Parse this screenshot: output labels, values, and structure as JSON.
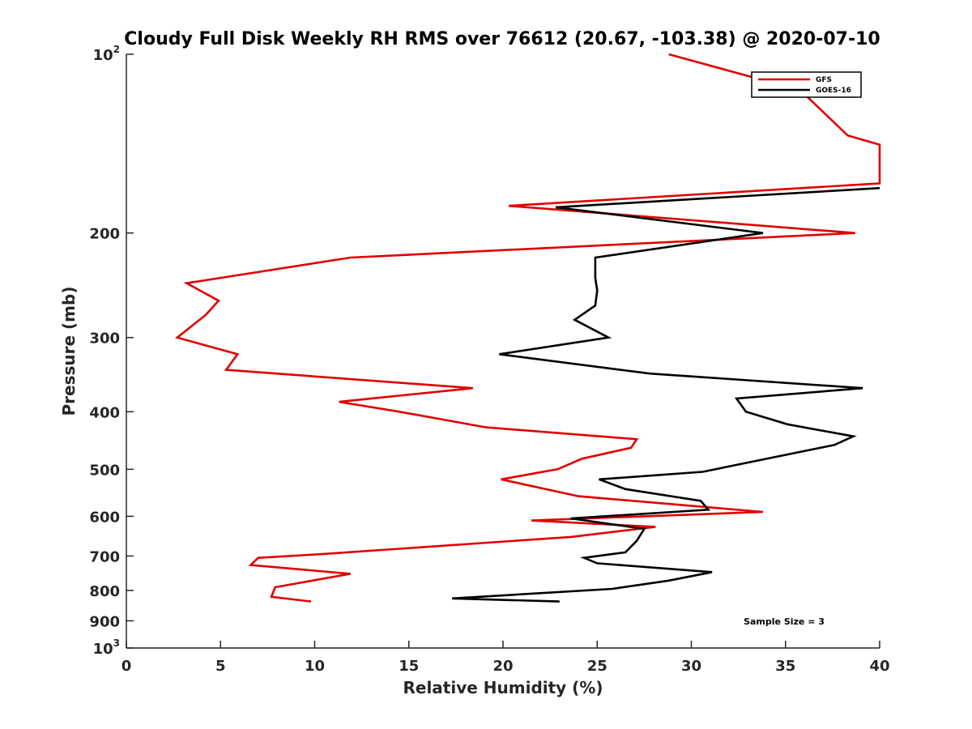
{
  "chart_data": {
    "type": "line",
    "title": "Cloudy Full Disk Weekly RH RMS over 76612 (20.67, -103.38) @ 2020-07-10",
    "xlabel": "Relative Humidity (%)",
    "ylabel": "Pressure (mb)",
    "xlim": [
      0,
      40
    ],
    "ylim": [
      100,
      1000
    ],
    "yscale": "log",
    "y_reversed": true,
    "grid": false,
    "legend_position": "top-right",
    "x_ticks": [
      0,
      5,
      10,
      15,
      20,
      25,
      30,
      35,
      40
    ],
    "x_tick_labels": [
      "0",
      "5",
      "10",
      "15",
      "20",
      "25",
      "30",
      "35",
      "40"
    ],
    "y_ticks": [
      100,
      200,
      300,
      400,
      500,
      600,
      700,
      800,
      900,
      1000
    ],
    "y_tick_labels": [
      {
        "base": "10",
        "exp": "2"
      },
      {
        "base": "200",
        "exp": ""
      },
      {
        "base": "300",
        "exp": ""
      },
      {
        "base": "400",
        "exp": ""
      },
      {
        "base": "500",
        "exp": ""
      },
      {
        "base": "600",
        "exp": ""
      },
      {
        "base": "700",
        "exp": ""
      },
      {
        "base": "800",
        "exp": ""
      },
      {
        "base": "900",
        "exp": ""
      },
      {
        "base": "10",
        "exp": "3"
      }
    ],
    "annotation": "Sample Size = 3",
    "series": [
      {
        "name": "GFS",
        "color": "#e00000",
        "points": [
          {
            "x": 28.8,
            "p": 100
          },
          {
            "x": 35.8,
            "p": 115
          },
          {
            "x": 38.3,
            "p": 137
          },
          {
            "x": 40.0,
            "p": 142
          },
          {
            "x": 40.0,
            "p": 165
          },
          {
            "x": 20.3,
            "p": 180
          },
          {
            "x": 38.7,
            "p": 200
          },
          {
            "x": 11.9,
            "p": 220
          },
          {
            "x": 3.2,
            "p": 243
          },
          {
            "x": 4.9,
            "p": 260
          },
          {
            "x": 4.2,
            "p": 275
          },
          {
            "x": 2.7,
            "p": 300
          },
          {
            "x": 5.9,
            "p": 320
          },
          {
            "x": 5.3,
            "p": 340
          },
          {
            "x": 18.4,
            "p": 365
          },
          {
            "x": 11.3,
            "p": 385
          },
          {
            "x": 14.5,
            "p": 400
          },
          {
            "x": 19.1,
            "p": 425
          },
          {
            "x": 27.1,
            "p": 445
          },
          {
            "x": 26.8,
            "p": 460
          },
          {
            "x": 24.2,
            "p": 480
          },
          {
            "x": 22.9,
            "p": 500
          },
          {
            "x": 19.9,
            "p": 520
          },
          {
            "x": 24.0,
            "p": 555
          },
          {
            "x": 33.8,
            "p": 590
          },
          {
            "x": 21.5,
            "p": 610
          },
          {
            "x": 28.1,
            "p": 625
          },
          {
            "x": 23.6,
            "p": 650
          },
          {
            "x": 10.3,
            "p": 695
          },
          {
            "x": 7.0,
            "p": 705
          },
          {
            "x": 6.6,
            "p": 725
          },
          {
            "x": 11.9,
            "p": 750
          },
          {
            "x": 7.9,
            "p": 790
          },
          {
            "x": 7.7,
            "p": 820
          },
          {
            "x": 9.8,
            "p": 835
          }
        ]
      },
      {
        "name": "GOES-16",
        "color": "#000000",
        "points": [
          {
            "x": 40.0,
            "p": 168
          },
          {
            "x": 22.8,
            "p": 181
          },
          {
            "x": 33.8,
            "p": 200
          },
          {
            "x": 24.9,
            "p": 220
          },
          {
            "x": 24.9,
            "p": 238
          },
          {
            "x": 25.0,
            "p": 250
          },
          {
            "x": 24.9,
            "p": 265
          },
          {
            "x": 23.8,
            "p": 280
          },
          {
            "x": 25.6,
            "p": 300
          },
          {
            "x": 19.8,
            "p": 320
          },
          {
            "x": 27.8,
            "p": 345
          },
          {
            "x": 39.1,
            "p": 365
          },
          {
            "x": 32.4,
            "p": 380
          },
          {
            "x": 32.9,
            "p": 400
          },
          {
            "x": 35.1,
            "p": 420
          },
          {
            "x": 38.6,
            "p": 440
          },
          {
            "x": 37.6,
            "p": 455
          },
          {
            "x": 34.7,
            "p": 475
          },
          {
            "x": 30.6,
            "p": 505
          },
          {
            "x": 25.1,
            "p": 520
          },
          {
            "x": 26.5,
            "p": 540
          },
          {
            "x": 30.5,
            "p": 565
          },
          {
            "x": 30.9,
            "p": 585
          },
          {
            "x": 23.6,
            "p": 605
          },
          {
            "x": 27.5,
            "p": 630
          },
          {
            "x": 27.1,
            "p": 660
          },
          {
            "x": 26.5,
            "p": 690
          },
          {
            "x": 24.3,
            "p": 705
          },
          {
            "x": 25.0,
            "p": 720
          },
          {
            "x": 31.1,
            "p": 745
          },
          {
            "x": 28.8,
            "p": 770
          },
          {
            "x": 25.8,
            "p": 795
          },
          {
            "x": 17.3,
            "p": 825
          },
          {
            "x": 23.0,
            "p": 835
          }
        ]
      }
    ]
  }
}
